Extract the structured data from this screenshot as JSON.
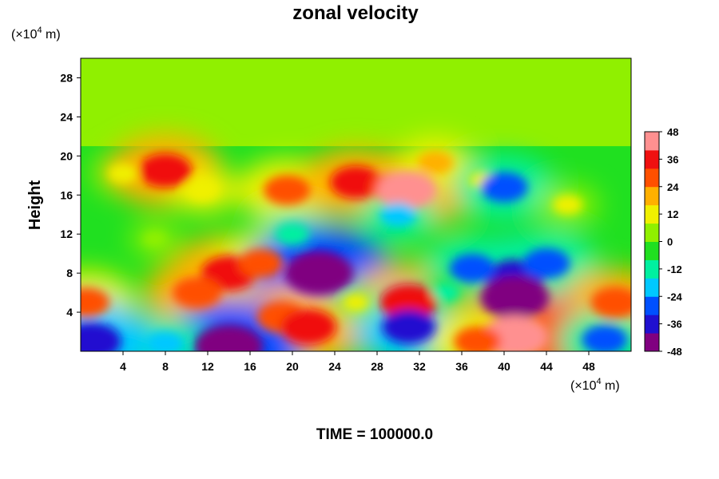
{
  "chart_data": {
    "type": "heatmap",
    "title": "zonal velocity",
    "ylabel": "Height",
    "y_unit_prefix": "(×10",
    "y_unit_exp": "4",
    "y_unit_suffix": " m)",
    "x_unit_prefix": "(×10",
    "x_unit_exp": "4",
    "x_unit_suffix": " m)",
    "xlim": [
      0,
      52
    ],
    "ylim": [
      0,
      30
    ],
    "x_ticks": [
      "4",
      "8",
      "12",
      "16",
      "20",
      "24",
      "28",
      "32",
      "36",
      "40",
      "44",
      "48"
    ],
    "y_ticks": [
      "4",
      "8",
      "12",
      "16",
      "20",
      "24",
      "28"
    ],
    "colorbar_ticks": [
      "48",
      "36",
      "24",
      "12",
      "0",
      "-12",
      "-24",
      "-36",
      "-48"
    ],
    "colorbar_range": [
      -48,
      48
    ],
    "colorbar_colors": [
      "#800080",
      "#2010d0",
      "#0050ff",
      "#00c8ff",
      "#00f0a0",
      "#20e020",
      "#90f000",
      "#f0f000",
      "#ffb000",
      "#ff5000",
      "#f01010",
      "#ff9090"
    ],
    "background_value": 0,
    "features": [
      {
        "x": 4.0,
        "y": 18.2,
        "value": 12
      },
      {
        "x": 8.0,
        "y": 18.5,
        "value": 34
      },
      {
        "x": 11.5,
        "y": 16.5,
        "value": 15
      },
      {
        "x": 19.5,
        "y": 16.5,
        "value": 28
      },
      {
        "x": 26.0,
        "y": 17.3,
        "value": 32
      },
      {
        "x": 29.5,
        "y": 16.8,
        "value": 26
      },
      {
        "x": 30.8,
        "y": 16.5,
        "value": 40
      },
      {
        "x": 33.5,
        "y": 19.3,
        "value": 18
      },
      {
        "x": 38.0,
        "y": 17.5,
        "value": 10
      },
      {
        "x": 40.0,
        "y": 16.8,
        "value": -28
      },
      {
        "x": 46.0,
        "y": 15.0,
        "value": 12
      },
      {
        "x": 30.0,
        "y": 14.0,
        "value": -18
      },
      {
        "x": 20.0,
        "y": 12.0,
        "value": -16
      },
      {
        "x": 7.0,
        "y": 11.5,
        "value": 6
      },
      {
        "x": 14.0,
        "y": 8.0,
        "value": 36
      },
      {
        "x": 11.0,
        "y": 6.0,
        "value": 30
      },
      {
        "x": 17.0,
        "y": 9.0,
        "value": 26
      },
      {
        "x": 22.5,
        "y": 8.5,
        "value": -40
      },
      {
        "x": 22.5,
        "y": 8.0,
        "value": -48
      },
      {
        "x": 19.0,
        "y": 3.5,
        "value": 30
      },
      {
        "x": 21.5,
        "y": 2.5,
        "value": 36
      },
      {
        "x": 31.0,
        "y": 5.0,
        "value": 38
      },
      {
        "x": 31.0,
        "y": 2.5,
        "value": -34
      },
      {
        "x": 26.0,
        "y": 5.0,
        "value": 8
      },
      {
        "x": 41.0,
        "y": 7.5,
        "value": -38
      },
      {
        "x": 41.0,
        "y": 5.5,
        "value": -48
      },
      {
        "x": 44.0,
        "y": 9.0,
        "value": -28
      },
      {
        "x": 37.0,
        "y": 8.5,
        "value": -26
      },
      {
        "x": 34.5,
        "y": 6.0,
        "value": -10
      },
      {
        "x": 50.5,
        "y": 5.0,
        "value": 30
      },
      {
        "x": 0.5,
        "y": 5.0,
        "value": 28
      },
      {
        "x": 41.0,
        "y": 1.5,
        "value": 46
      },
      {
        "x": 37.5,
        "y": 1.0,
        "value": 28
      },
      {
        "x": 14.0,
        "y": 0.5,
        "value": -48
      },
      {
        "x": 8.0,
        "y": 0.8,
        "value": -20
      },
      {
        "x": 1.0,
        "y": 1.0,
        "value": -40
      },
      {
        "x": 49.5,
        "y": 1.2,
        "value": -26
      }
    ]
  },
  "footer": {
    "time_label": "TIME = 100000.0"
  }
}
